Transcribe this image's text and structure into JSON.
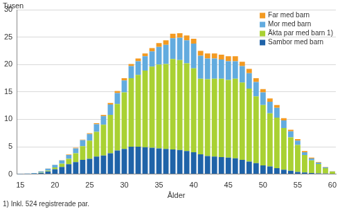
{
  "chart_data": {
    "type": "bar",
    "stacked": true,
    "y_label": "Tusen",
    "x_label": "Ålder",
    "footnote": "1) Inkl. 524 registrerade par.",
    "categories": [
      15,
      null,
      null,
      null,
      null,
      20,
      null,
      null,
      null,
      null,
      25,
      null,
      null,
      null,
      null,
      30,
      null,
      null,
      null,
      null,
      35,
      null,
      null,
      null,
      null,
      40,
      null,
      null,
      null,
      null,
      45,
      null,
      null,
      null,
      null,
      50,
      null,
      null,
      null,
      null,
      55,
      null,
      null,
      null,
      null,
      60
    ],
    "series": [
      {
        "name": "Sambor med barn",
        "color": "#1f63a8",
        "values": [
          0.01,
          0.03,
          0.08,
          0.2,
          0.5,
          0.9,
          1.3,
          1.8,
          2.2,
          2.6,
          2.8,
          3.2,
          3.4,
          3.8,
          4.3,
          4.6,
          5.0,
          5.0,
          4.9,
          4.8,
          4.7,
          4.6,
          4.5,
          4.4,
          4.2,
          4.0,
          3.6,
          3.3,
          3.2,
          3.1,
          3.0,
          2.9,
          2.6,
          2.3,
          2.0,
          1.6,
          1.4,
          1.1,
          0.8,
          0.6,
          0.4,
          0.3,
          0.2,
          0.15,
          0.1,
          0.04
        ]
      },
      {
        "name": "Äkta par med barn 1)",
        "color": "#a9d133",
        "values": [
          0,
          0,
          0.01,
          0.05,
          0.15,
          0.3,
          0.6,
          1.0,
          1.6,
          2.5,
          3.3,
          4.5,
          5.6,
          7.0,
          8.5,
          10.3,
          12.5,
          13.1,
          14.0,
          14.8,
          15.3,
          15.5,
          16.5,
          16.4,
          16.0,
          15.3,
          13.8,
          14.0,
          14.2,
          14.3,
          14.2,
          14.5,
          14.1,
          13.3,
          12.2,
          11.0,
          9.7,
          9.2,
          7.6,
          6.1,
          4.9,
          3.2,
          2.3,
          1.7,
          1.0,
          0.4
        ]
      },
      {
        "name": "Mor med barn",
        "color": "#62abdf",
        "values": [
          0.04,
          0.07,
          0.1,
          0.25,
          0.35,
          0.5,
          0.6,
          0.7,
          0.9,
          1.1,
          1.2,
          1.4,
          1.6,
          1.9,
          2.0,
          2.2,
          2.2,
          2.5,
          2.6,
          2.8,
          3.2,
          3.5,
          3.8,
          4.1,
          4.2,
          4.5,
          4.2,
          3.8,
          3.7,
          3.5,
          3.4,
          3.2,
          3.0,
          2.8,
          2.6,
          2.3,
          2.1,
          1.8,
          1.4,
          1.1,
          0.8,
          0.5,
          0.35,
          0.25,
          0.15,
          0.05
        ]
      },
      {
        "name": "Far med barn",
        "color": "#f39a22",
        "values": [
          0,
          0,
          0.01,
          0.01,
          0.02,
          0.03,
          0.05,
          0.07,
          0.1,
          0.1,
          0.15,
          0.2,
          0.2,
          0.3,
          0.35,
          0.4,
          0.4,
          0.5,
          0.5,
          0.6,
          0.7,
          0.8,
          0.8,
          0.8,
          0.9,
          0.9,
          0.9,
          0.9,
          0.9,
          0.9,
          0.9,
          0.9,
          0.8,
          0.8,
          0.7,
          0.6,
          0.6,
          0.5,
          0.4,
          0.3,
          0.3,
          0.2,
          0.15,
          0.1,
          0.05,
          0.02
        ]
      }
    ],
    "ylim": [
      0,
      30
    ],
    "yticks": [
      0,
      5,
      10,
      15,
      20,
      25,
      30
    ],
    "grid": true,
    "legend": "upper right"
  }
}
